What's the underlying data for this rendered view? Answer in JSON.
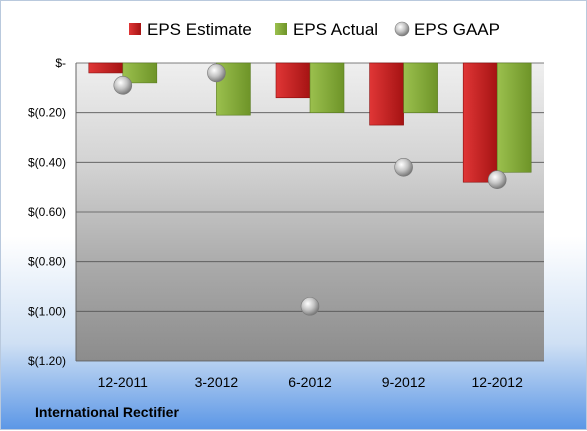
{
  "chart_data": {
    "type": "bar",
    "categories": [
      "12-2011",
      "3-2012",
      "6-2012",
      "9-2012",
      "12-2012"
    ],
    "series": [
      {
        "name": "EPS Estimate",
        "kind": "bar",
        "color": "#cc1f1f",
        "values": [
          -0.04,
          0.0,
          -0.14,
          -0.25,
          -0.48
        ]
      },
      {
        "name": "EPS Actual",
        "kind": "bar",
        "color": "#86b23a",
        "values": [
          -0.08,
          -0.21,
          -0.2,
          -0.2,
          -0.44
        ]
      },
      {
        "name": "EPS GAAP",
        "kind": "scatter",
        "color": "#a8a8a8",
        "values": [
          -0.09,
          -0.04,
          -0.98,
          -0.42,
          -0.47
        ]
      }
    ],
    "ylim": [
      -1.2,
      0
    ],
    "yticks": [
      {
        "value": 0,
        "label": "$-"
      },
      {
        "value": -0.2,
        "label": "$(0.20)"
      },
      {
        "value": -0.4,
        "label": "$(0.40)"
      },
      {
        "value": -0.6,
        "label": "$(0.60)"
      },
      {
        "value": -0.8,
        "label": "$(0.80)"
      },
      {
        "value": -1.0,
        "label": "$(1.00)"
      },
      {
        "value": -1.2,
        "label": "$(1.20)"
      }
    ],
    "grid": true,
    "legend": "top"
  },
  "company_label": "International Rectifier"
}
